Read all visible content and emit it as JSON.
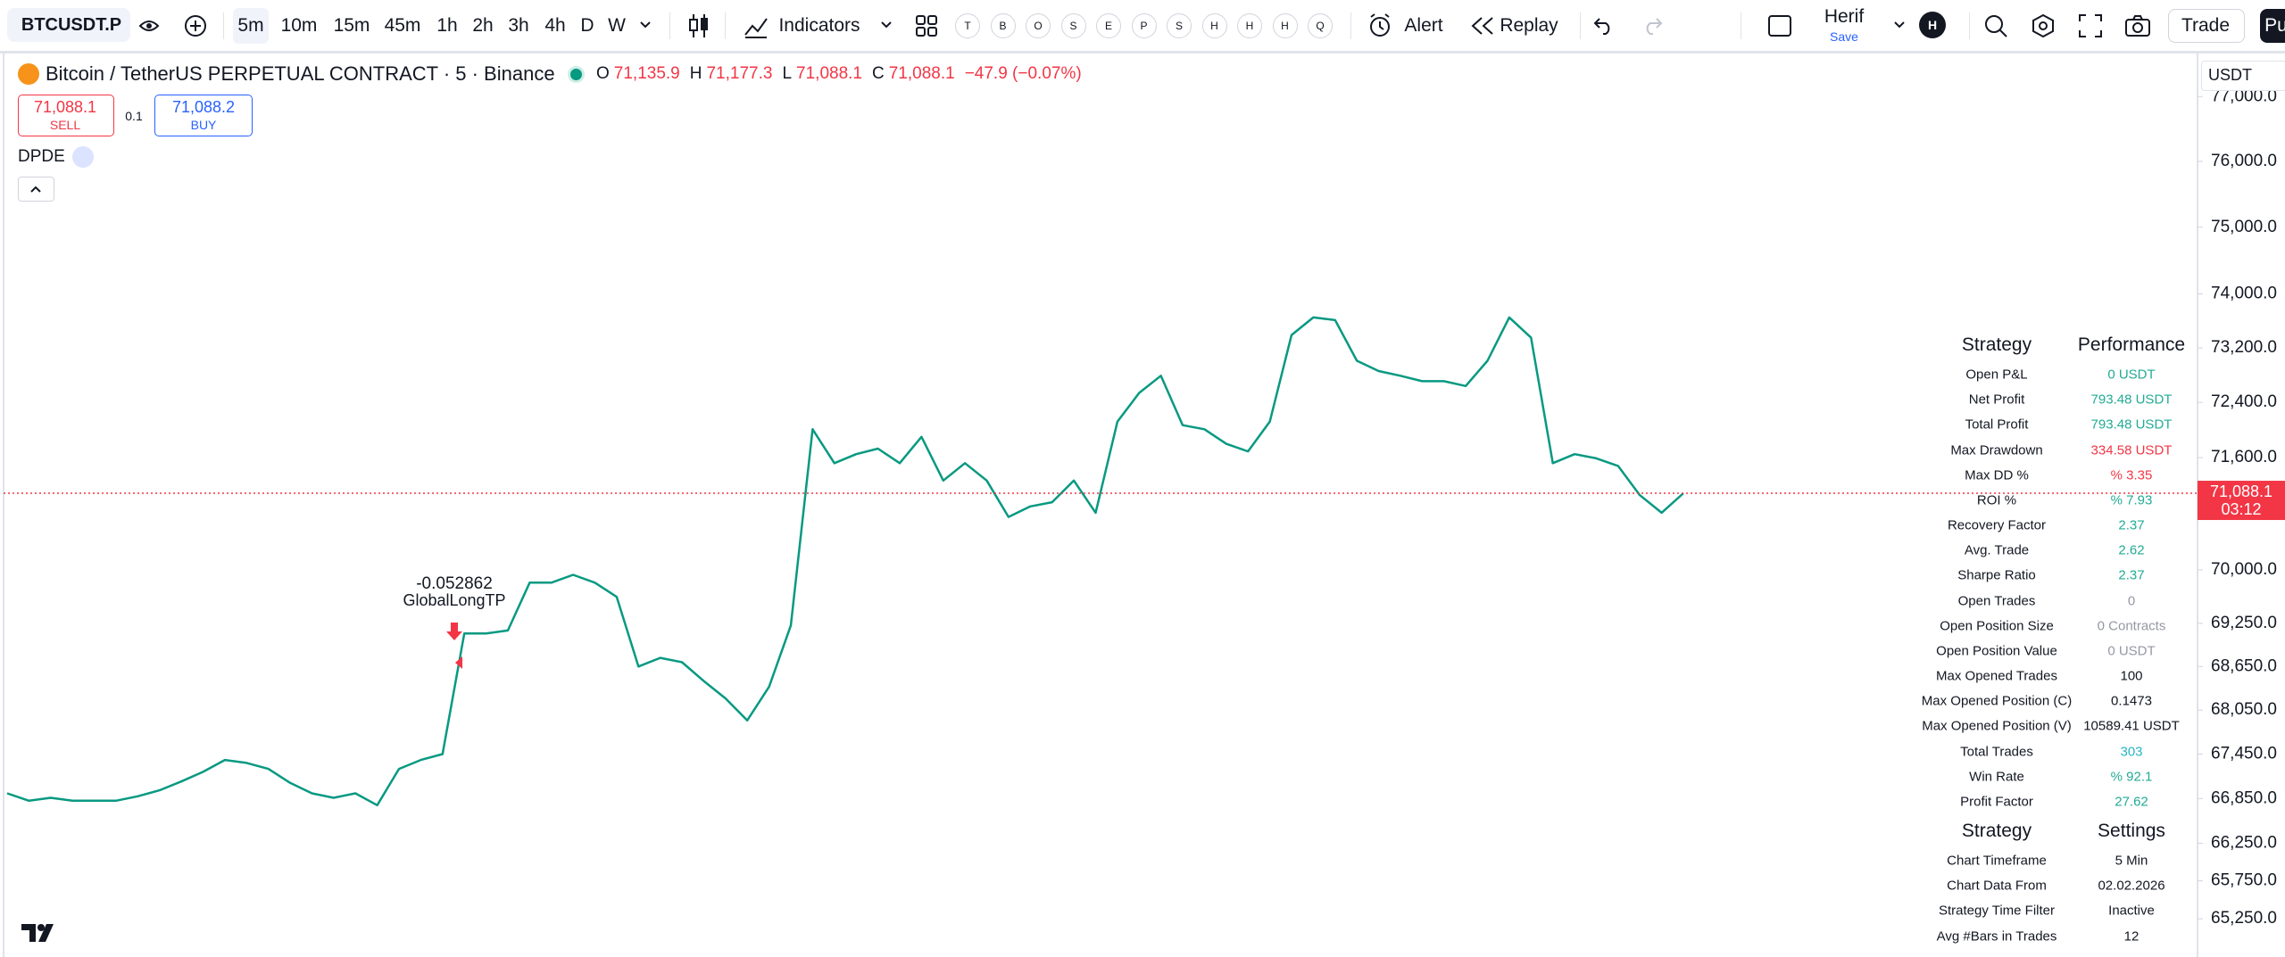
{
  "toolbar": {
    "symbol": "BTCUSDT.P",
    "intervals": [
      "5m",
      "10m",
      "15m",
      "45m",
      "1h",
      "2h",
      "3h",
      "4h",
      "D",
      "W"
    ],
    "indicators": "Indicators",
    "quick_buttons": [
      "T",
      "B",
      "O",
      "S",
      "E",
      "P",
      "S",
      "H",
      "H",
      "H",
      "Q"
    ],
    "alert": "Alert",
    "replay": "Replay",
    "layout_name": "Herif",
    "save": "Save",
    "avatar": "H",
    "trade": "Trade",
    "publish": "Pu"
  },
  "legend": {
    "title": "Bitcoin / TetherUS PERPETUAL CONTRACT · 5 · Binance",
    "ohlc": [
      {
        "key": "O",
        "value": "71,135.9"
      },
      {
        "key": "H",
        "value": "71,177.3"
      },
      {
        "key": "L",
        "value": "71,088.1"
      },
      {
        "key": "C",
        "value": "71,088.1"
      }
    ],
    "change": "−47.9 (−0.07%)"
  },
  "order_panel": {
    "sell_price": "71,088.1",
    "sell": "SELL",
    "quantity": "0.1",
    "buy_price": "71,088.2",
    "buy": "BUY"
  },
  "indicator": "DPDE",
  "currency": "USDT",
  "chart_data": {
    "type": "line",
    "values": [
      66920,
      66820,
      66860,
      66820,
      66820,
      66820,
      66880,
      66960,
      67080,
      67210,
      67370,
      67330,
      67250,
      67060,
      66920,
      66860,
      66920,
      66760,
      67250,
      67370,
      67450,
      69110,
      69110,
      69150,
      69820,
      69820,
      69930,
      69820,
      69620,
      68650,
      68770,
      68710,
      68450,
      68210,
      67910,
      68370,
      69220,
      72010,
      71520,
      71650,
      71730,
      71520,
      71900,
      71270,
      71520,
      71270,
      70750,
      70900,
      70960,
      71270,
      70810,
      72120,
      72540,
      72790,
      72070,
      72010,
      71800,
      71690,
      72120,
      73390,
      73650,
      73610,
      73010,
      72860,
      72790,
      72710,
      72710,
      72640,
      73010,
      73650,
      73350,
      71520,
      71650,
      71590,
      71480,
      71060,
      70810,
      71088.1
    ],
    "color": "#089981",
    "log_scale": true,
    "ylim": [
      64750,
      77670
    ],
    "yticks": [
      {
        "value": 77000,
        "label": "77,000.0"
      },
      {
        "value": 76000,
        "label": "76,000.0"
      },
      {
        "value": 75000,
        "label": "75,000.0"
      },
      {
        "value": 74000,
        "label": "74,000.0"
      },
      {
        "value": 73200,
        "label": "73,200.0"
      },
      {
        "value": 72400,
        "label": "72,400.0"
      },
      {
        "value": 71600,
        "label": "71,600.0"
      },
      {
        "value": 70000,
        "label": "70,000.0"
      },
      {
        "value": 69250,
        "label": "69,250.0"
      },
      {
        "value": 68650,
        "label": "68,650.0"
      },
      {
        "value": 68050,
        "label": "68,050.0"
      },
      {
        "value": 67450,
        "label": "67,450.0"
      },
      {
        "value": 66850,
        "label": "66,850.0"
      },
      {
        "value": 66250,
        "label": "66,250.0"
      },
      {
        "value": 65750,
        "label": "65,750.0"
      },
      {
        "value": 65250,
        "label": "65,250.0"
      }
    ],
    "last_price_label": "71,088.1",
    "countdown": "03:12",
    "price_line_color": "#f23645",
    "annotation": {
      "value": "-0.052862",
      "label": "GlobalLongTP"
    }
  },
  "strategy_table": {
    "performance": {
      "header": [
        "Strategy",
        "Performance"
      ],
      "rows": [
        {
          "label": "Open P&L",
          "value": "0 USDT",
          "color": "#22ab94"
        },
        {
          "label": "Net Profit",
          "value": "793.48 USDT",
          "color": "#22ab94"
        },
        {
          "label": "Total Profit",
          "value": "793.48 USDT",
          "color": "#22ab94"
        },
        {
          "label": "Max Drawdown",
          "value": "334.58 USDT",
          "color": "#f23645"
        },
        {
          "label": "Max DD %",
          "value": "% 3.35",
          "color": "#f23645"
        },
        {
          "label": "ROI %",
          "value": "% 7.93",
          "color": "#22ab94"
        },
        {
          "label": "Recovery Factor",
          "value": "2.37",
          "color": "#22ab94"
        },
        {
          "label": "Avg. Trade",
          "value": "2.62",
          "color": "#22ab94"
        },
        {
          "label": "Sharpe Ratio",
          "value": "2.37",
          "color": "#22ab94"
        },
        {
          "label": "Open Trades",
          "value": "0",
          "color": "#9598a1"
        },
        {
          "label": "Open Position Size",
          "value": "0 Contracts",
          "color": "#9598a1"
        },
        {
          "label": "Open Position Value",
          "value": "0 USDT",
          "color": "#9598a1"
        },
        {
          "label": "Max Opened Trades",
          "value": "100",
          "color": "#131722"
        },
        {
          "label": "Max Opened Position (C)",
          "value": "0.1473",
          "color": "#131722"
        },
        {
          "label": "Max Opened Position (V)",
          "value": "10589.41 USDT",
          "color": "#131722"
        },
        {
          "label": "Total Trades",
          "value": "303",
          "color": "#2ab5c4"
        },
        {
          "label": "Win Rate",
          "value": "% 92.1",
          "color": "#22ab94"
        },
        {
          "label": "Profit Factor",
          "value": "27.62",
          "color": "#22ab94"
        }
      ]
    },
    "settings": {
      "header": [
        "Strategy",
        "Settings"
      ],
      "rows": [
        {
          "label": "Chart Timeframe",
          "value": "5 Min",
          "color": "#131722"
        },
        {
          "label": "Chart Data From",
          "value": "02.02.2026",
          "color": "#131722"
        },
        {
          "label": "Strategy Time Filter",
          "value": "Inactive",
          "color": "#131722"
        },
        {
          "label": "Avg #Bars in Trades",
          "value": "12",
          "color": "#131722"
        }
      ]
    }
  }
}
